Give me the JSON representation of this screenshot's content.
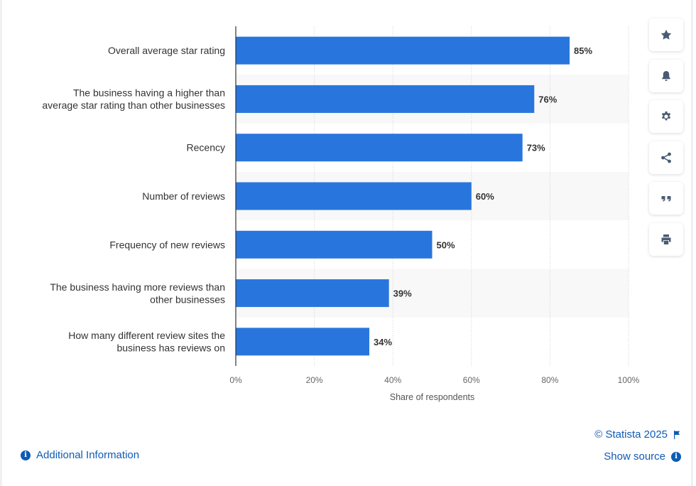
{
  "chart_data": {
    "type": "bar",
    "orientation": "horizontal",
    "categories": [
      [
        "Overall average star rating"
      ],
      [
        "The business having a higher than",
        "average star rating than other businesses"
      ],
      [
        "Recency"
      ],
      [
        "Number of reviews"
      ],
      [
        "Frequency of new reviews"
      ],
      [
        "The business having more reviews than",
        "other businesses"
      ],
      [
        "How many different review sites the",
        "business has reviews on"
      ]
    ],
    "values": [
      85,
      76,
      73,
      60,
      50,
      39,
      34
    ],
    "value_labels": [
      "85%",
      "76%",
      "73%",
      "60%",
      "50%",
      "39%",
      "34%"
    ],
    "xlim": [
      0,
      100
    ],
    "xticks": [
      "0%",
      "20%",
      "40%",
      "60%",
      "80%",
      "100%"
    ],
    "xlabel": "Share of respondents",
    "grid": true,
    "bar_color": "#2876dd"
  },
  "toolbar": {
    "buttons": [
      "star-icon",
      "bell-icon",
      "gear-icon",
      "share-icon",
      "quote-icon",
      "print-icon"
    ]
  },
  "footer": {
    "additional_info": "Additional Information",
    "copyright": "© Statista 2025",
    "show_source": "Show source",
    "link_color": "#0f5bb5"
  }
}
